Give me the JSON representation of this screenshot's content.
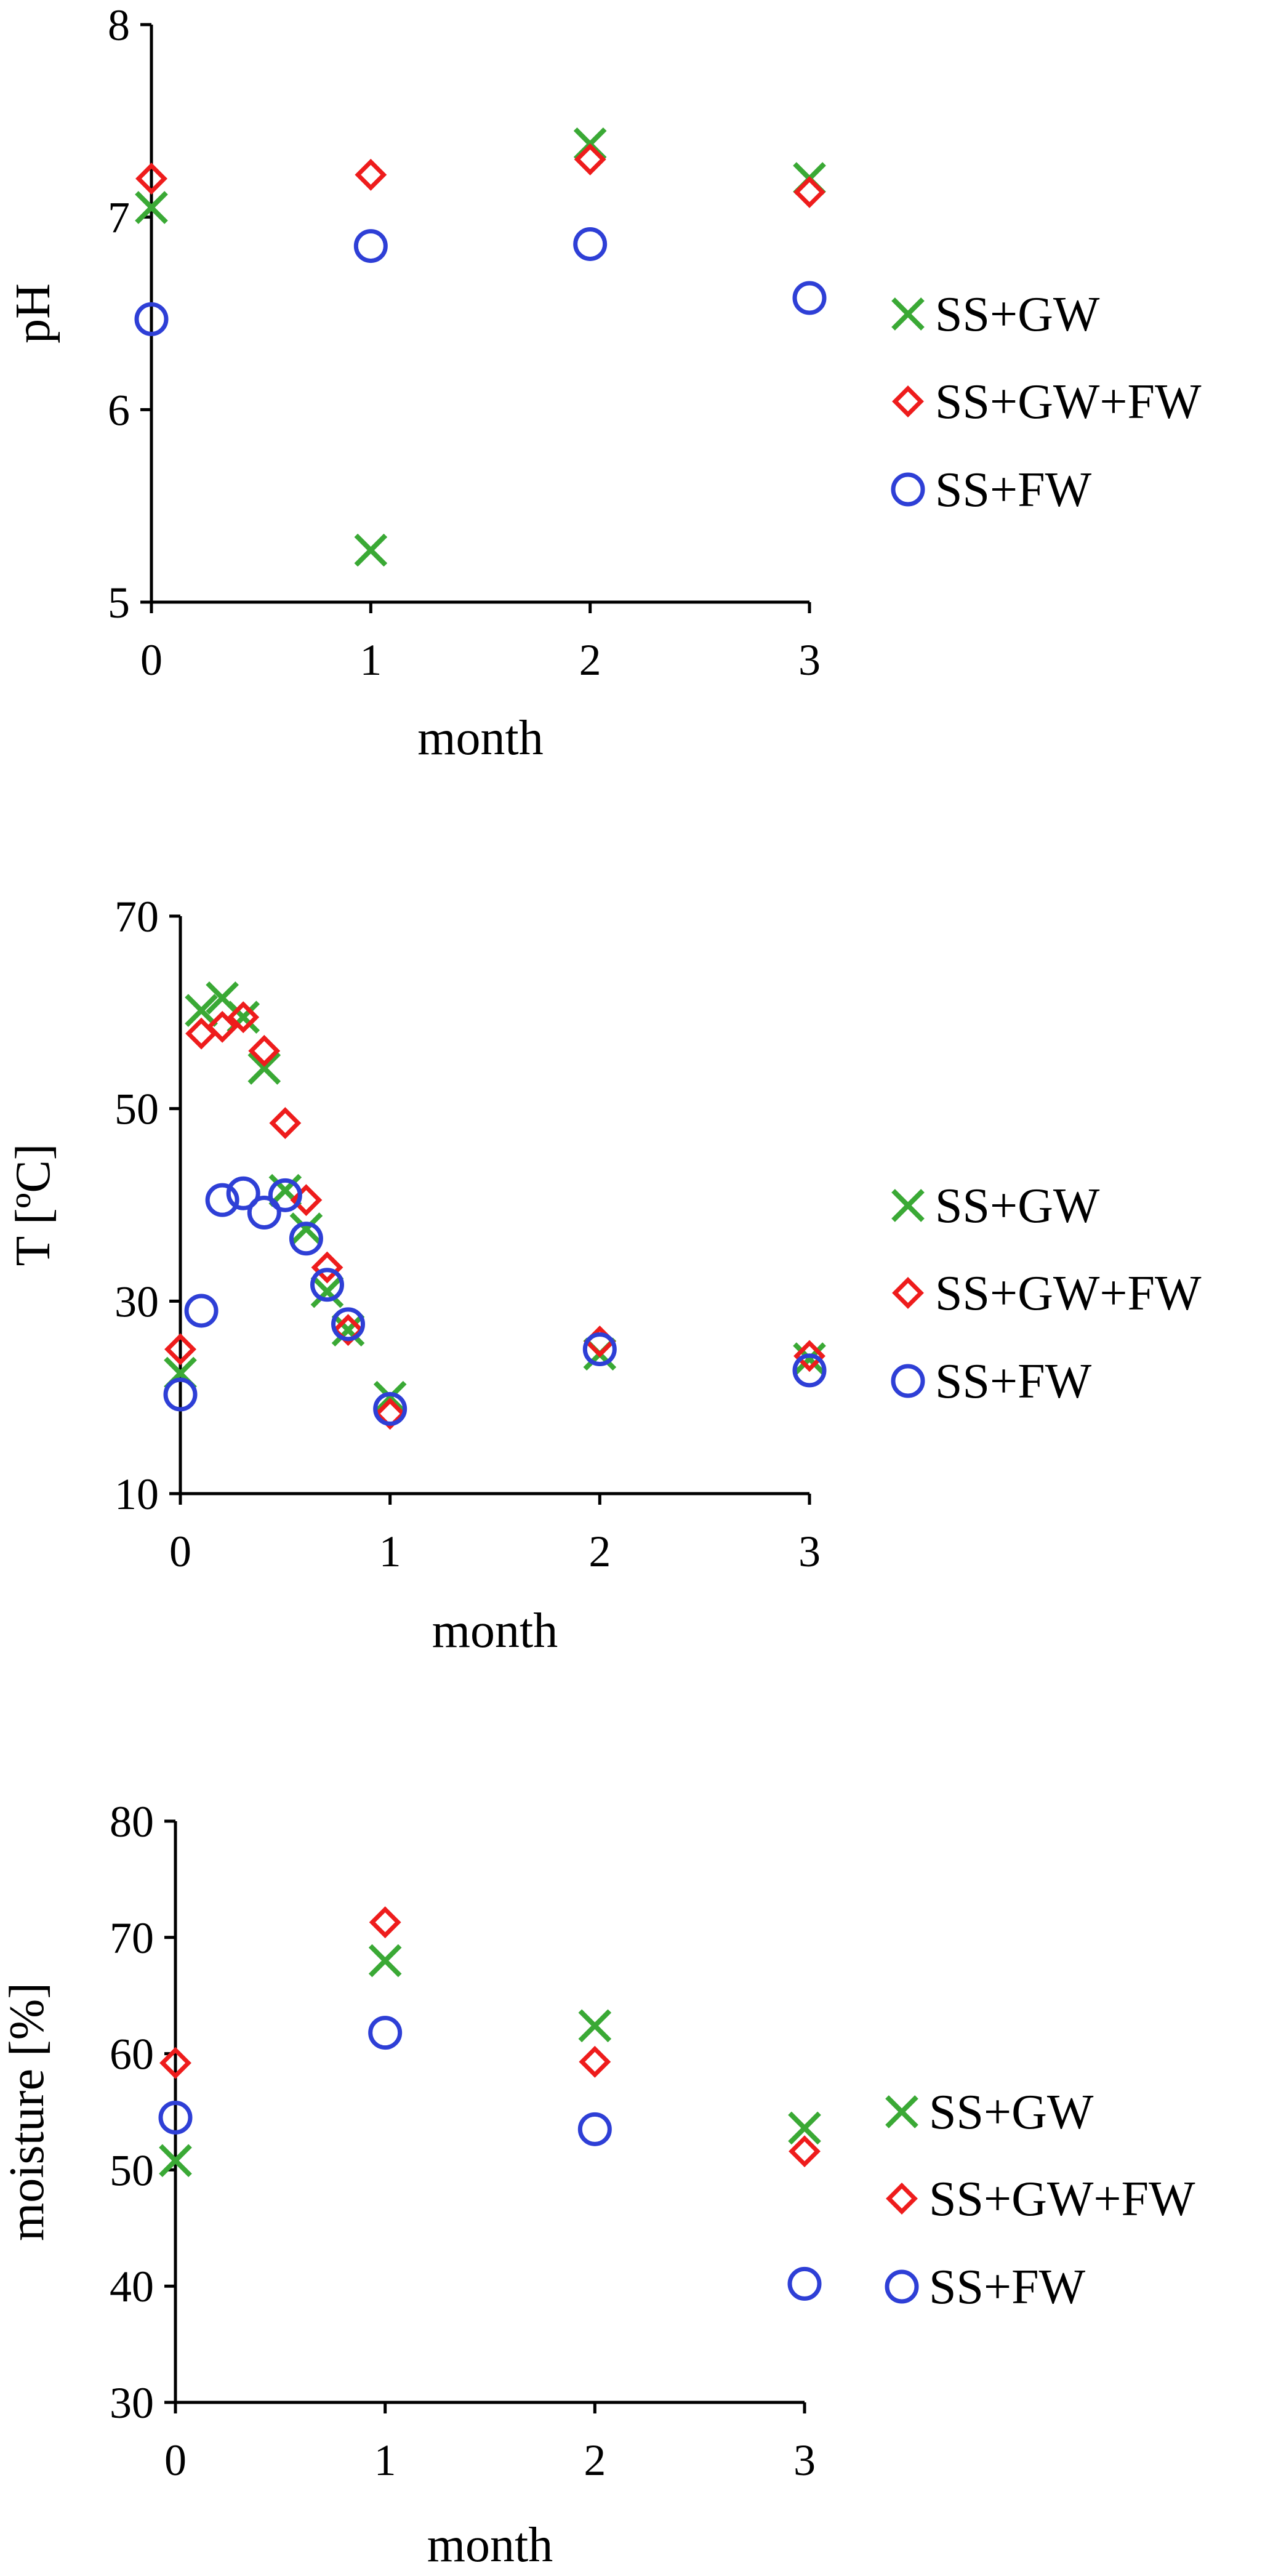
{
  "chart_data": [
    {
      "type": "scatter",
      "xlabel": "month",
      "ylabel": "pH",
      "xlim": [
        0,
        3
      ],
      "ylim": [
        5,
        8
      ],
      "xticks": [
        "0",
        "1",
        "2",
        "3"
      ],
      "yticks": [
        "5",
        "6",
        "7",
        "8"
      ],
      "grid": false,
      "legend": "right",
      "series": [
        {
          "name": "SS+GW",
          "marker": "x",
          "color": "#3aa935",
          "points": [
            [
              0,
              7.05
            ],
            [
              1,
              5.27
            ],
            [
              2,
              7.38
            ],
            [
              3,
              7.2
            ]
          ]
        },
        {
          "name": "SS+GW+FW",
          "marker": "diamond",
          "color": "#ee1c1c",
          "points": [
            [
              0,
              7.2
            ],
            [
              1,
              7.22
            ],
            [
              2,
              7.3
            ],
            [
              3,
              7.13
            ]
          ]
        },
        {
          "name": "SS+FW",
          "marker": "circle",
          "color": "#2e3fd6",
          "points": [
            [
              0,
              6.47
            ],
            [
              1,
              6.85
            ],
            [
              2,
              6.86
            ],
            [
              3,
              6.58
            ]
          ]
        }
      ]
    },
    {
      "type": "scatter",
      "xlabel": "month",
      "ylabel": "T [ºC]",
      "xlim": [
        0,
        3
      ],
      "ylim": [
        10,
        70
      ],
      "xticks": [
        "0",
        "1",
        "2",
        "3"
      ],
      "yticks": [
        "10",
        "30",
        "50",
        "70"
      ],
      "grid": false,
      "legend": "right",
      "series": [
        {
          "name": "SS+GW",
          "marker": "x",
          "color": "#3aa935",
          "points": [
            [
              0,
              22.5
            ],
            [
              0.1,
              60.2
            ],
            [
              0.2,
              61.5
            ],
            [
              0.3,
              59.5
            ],
            [
              0.4,
              54.2
            ],
            [
              0.5,
              41.5
            ],
            [
              0.6,
              37.5
            ],
            [
              0.7,
              31
            ],
            [
              0.8,
              27
            ],
            [
              1,
              20
            ],
            [
              2,
              24.5
            ],
            [
              3,
              24
            ]
          ]
        },
        {
          "name": "SS+GW+FW",
          "marker": "diamond",
          "color": "#ee1c1c",
          "points": [
            [
              0,
              25
            ],
            [
              0.1,
              57.8
            ],
            [
              0.2,
              58.5
            ],
            [
              0.3,
              59.5
            ],
            [
              0.4,
              56
            ],
            [
              0.5,
              48.5
            ],
            [
              0.6,
              40.5
            ],
            [
              0.7,
              33.5
            ],
            [
              0.8,
              27
            ],
            [
              1,
              18.3
            ],
            [
              2,
              25.8
            ],
            [
              3,
              24.3
            ]
          ]
        },
        {
          "name": "SS+FW",
          "marker": "circle",
          "color": "#2e3fd6",
          "points": [
            [
              0,
              20.3
            ],
            [
              0.1,
              29
            ],
            [
              0.2,
              40.5
            ],
            [
              0.3,
              41.2
            ],
            [
              0.4,
              39.2
            ],
            [
              0.5,
              41
            ],
            [
              0.6,
              36.5
            ],
            [
              0.7,
              31.7
            ],
            [
              0.8,
              27.6
            ],
            [
              1,
              18.8
            ],
            [
              2,
              25
            ],
            [
              3,
              22.8
            ]
          ]
        }
      ]
    },
    {
      "type": "scatter",
      "xlabel": "month",
      "ylabel": "moisture [%]",
      "xlim": [
        0,
        3
      ],
      "ylim": [
        30,
        80
      ],
      "xticks": [
        "0",
        "1",
        "2",
        "3"
      ],
      "yticks": [
        "30",
        "40",
        "50",
        "60",
        "70",
        "80"
      ],
      "grid": false,
      "legend": "right",
      "series": [
        {
          "name": "SS+GW",
          "marker": "x",
          "color": "#3aa935",
          "points": [
            [
              0,
              50.8
            ],
            [
              1,
              68
            ],
            [
              2,
              62.4
            ],
            [
              3,
              53.6
            ]
          ]
        },
        {
          "name": "SS+GW+FW",
          "marker": "diamond",
          "color": "#ee1c1c",
          "points": [
            [
              0,
              59.2
            ],
            [
              1,
              71.3
            ],
            [
              2,
              59.3
            ],
            [
              3,
              51.6
            ]
          ]
        },
        {
          "name": "SS+FW",
          "marker": "circle",
          "color": "#2e3fd6",
          "points": [
            [
              0,
              54.5
            ],
            [
              1,
              61.8
            ],
            [
              2,
              53.5
            ],
            [
              3,
              40.2
            ]
          ]
        }
      ]
    }
  ]
}
